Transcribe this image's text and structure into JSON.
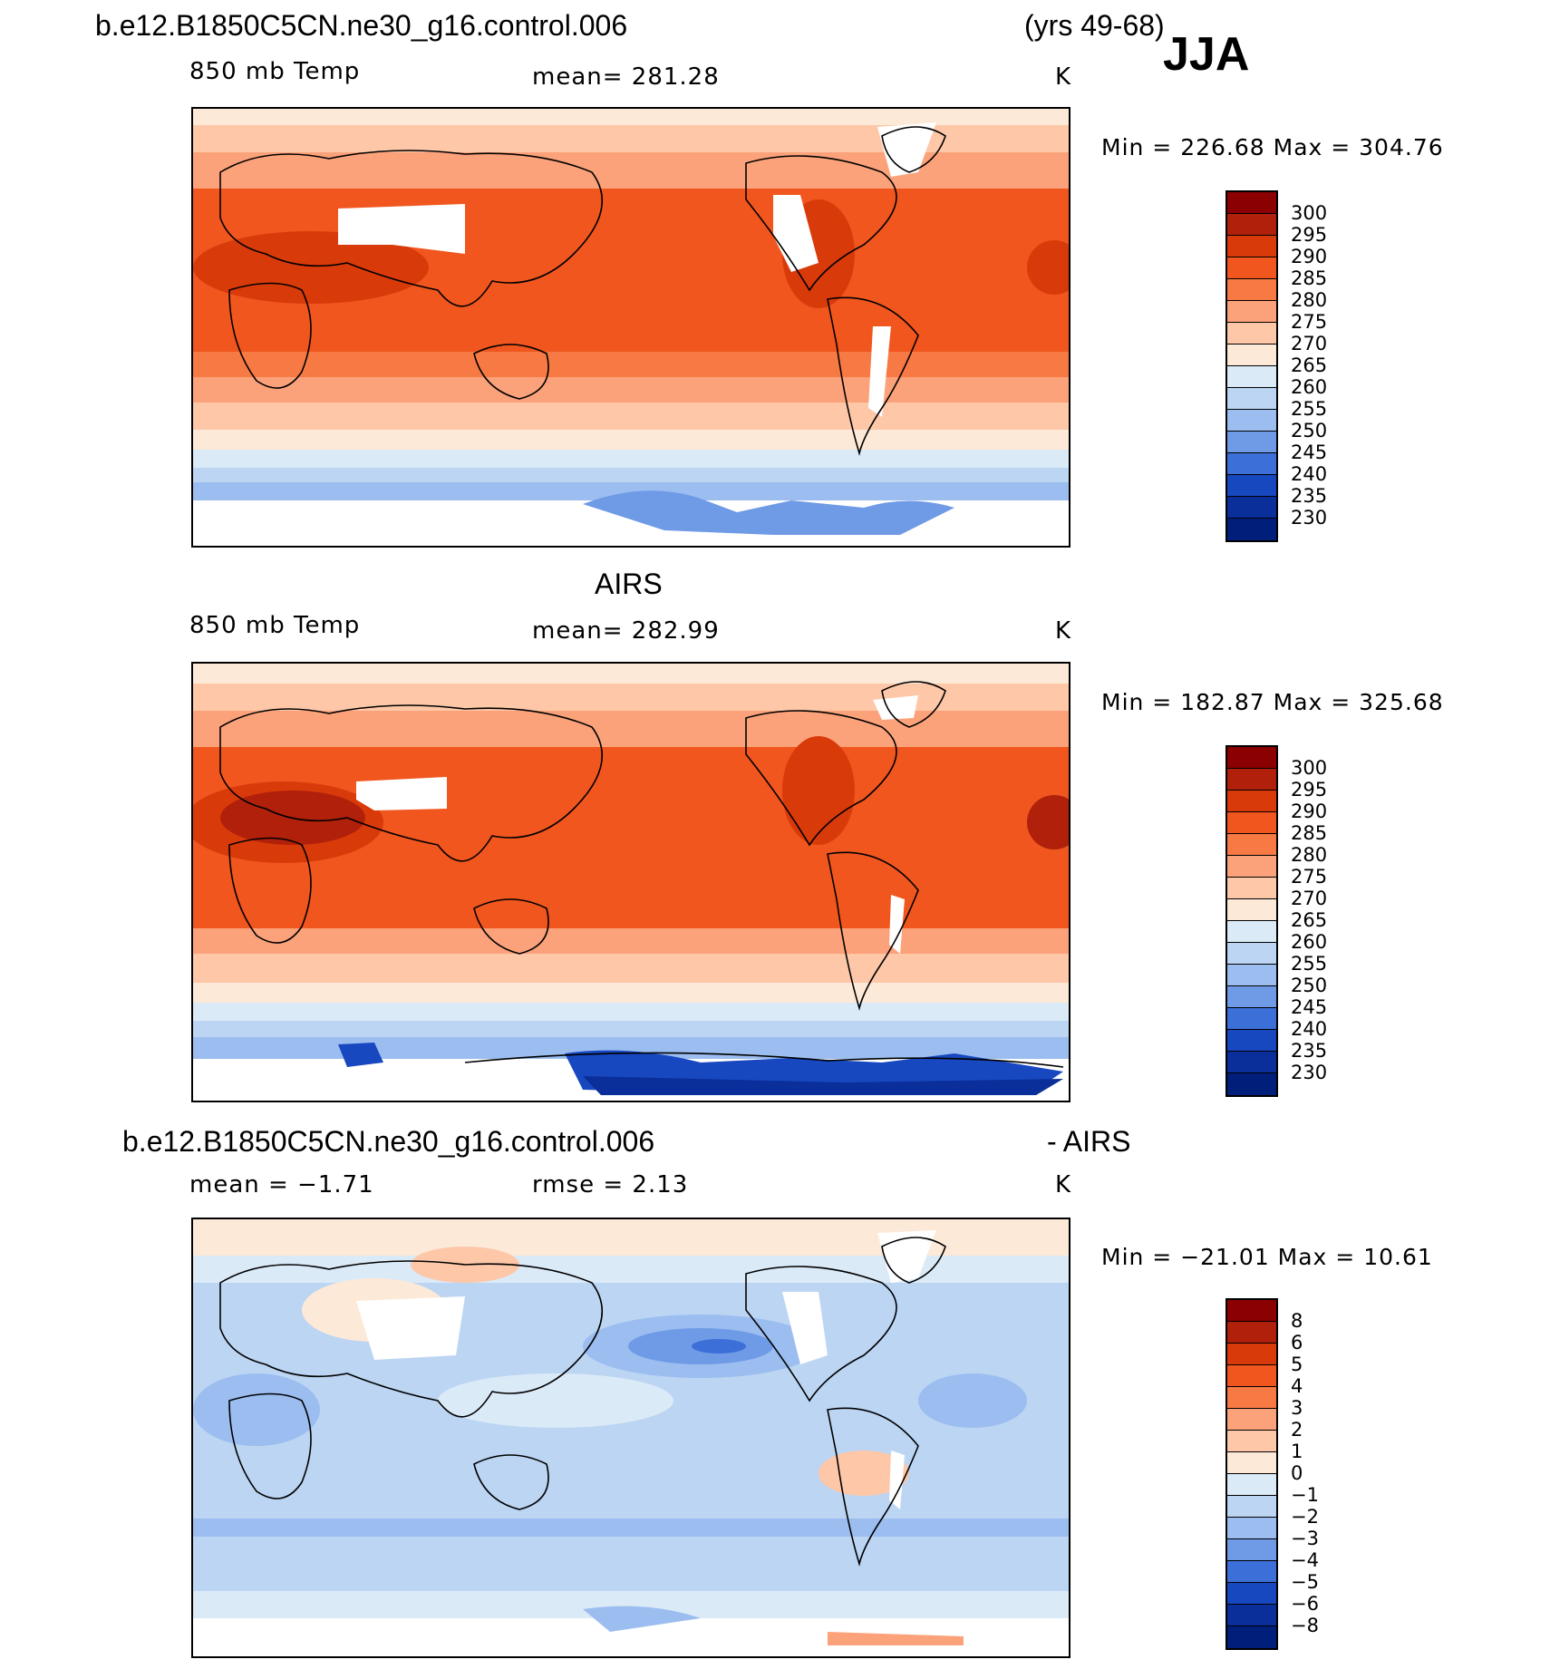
{
  "header": {
    "case": "b.e12.B1850C5CN.ne30_g16.control.006",
    "years": "(yrs 49-68)",
    "season": "JJA"
  },
  "panels": [
    {
      "title": "",
      "var": "850 mb Temp",
      "stat": "mean=  281.28",
      "stat2": "",
      "units": "K",
      "minmax": "Min  =  226.68  Max  =  304.76",
      "labels": [
        "300",
        "295",
        "290",
        "285",
        "280",
        "275",
        "270",
        "265",
        "260",
        "255",
        "250",
        "245",
        "240",
        "235",
        "230"
      ]
    },
    {
      "title": "AIRS",
      "var": "850 mb Temp",
      "stat": "mean=  282.99",
      "stat2": "",
      "units": "K",
      "minmax": "Min  =  182.87  Max  =  325.68",
      "labels": [
        "300",
        "295",
        "290",
        "285",
        "280",
        "275",
        "270",
        "265",
        "260",
        "255",
        "250",
        "245",
        "240",
        "235",
        "230"
      ]
    },
    {
      "title": "b.e12.B1850C5CN.ne30_g16.control.006",
      "title2": "- AIRS",
      "var": "mean  =    −1.71",
      "stat": "rmse  =     2.13",
      "stat2": "",
      "units": "K",
      "minmax": "Min  = −21.01  Max  =    10.61",
      "labels": [
        "8",
        "6",
        "5",
        "4",
        "3",
        "2",
        "1",
        "0",
        "−1",
        "−2",
        "−3",
        "−4",
        "−5",
        "−6",
        "−8"
      ]
    }
  ],
  "colors": {
    "temp": [
      "#8b0000",
      "#b0200a",
      "#d93a0a",
      "#f0561e",
      "#f77a45",
      "#fba27a",
      "#fdc7a8",
      "#fde9d8",
      "#dbeaf7",
      "#bcd5f3",
      "#9bbdf0",
      "#6f9ae6",
      "#3d6fd8",
      "#1848c0",
      "#0a2e9a",
      "#001f7a"
    ],
    "diff": [
      "#8b0000",
      "#b0200a",
      "#d93a0a",
      "#f0561e",
      "#f77a45",
      "#fba27a",
      "#fdc7a8",
      "#fde9d8",
      "#dbeaf7",
      "#bcd5f3",
      "#9bbdf0",
      "#6f9ae6",
      "#3d6fd8",
      "#1848c0",
      "#0a2e9a",
      "#001f7a"
    ]
  }
}
